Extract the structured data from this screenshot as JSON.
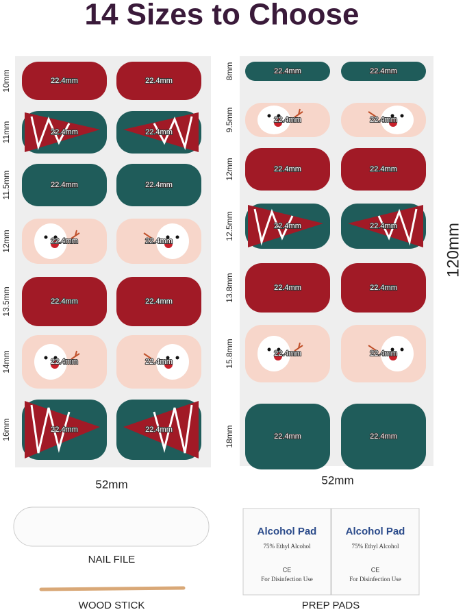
{
  "title": "14 Sizes to Choose",
  "left_sheet": {
    "rows": [
      {
        "size": "10mm",
        "nail_labels": [
          "22.4mm",
          "22.4mm"
        ]
      },
      {
        "size": "11mm",
        "nail_labels": [
          "22.4mm",
          "22.4mm"
        ]
      },
      {
        "size": "11.5mm",
        "nail_labels": [
          "22.4mm",
          "22.4mm"
        ]
      },
      {
        "size": "12mm",
        "nail_labels": [
          "22.4mm",
          "22.4mm"
        ]
      },
      {
        "size": "13.5mm",
        "nail_labels": [
          "22.4mm",
          "22.4mm"
        ]
      },
      {
        "size": "14mm",
        "nail_labels": [
          "22.4mm",
          "22.4mm"
        ]
      },
      {
        "size": "16mm",
        "nail_labels": [
          "22.4mm",
          "22.4mm"
        ]
      }
    ],
    "width_label": "52mm"
  },
  "right_sheet": {
    "rows": [
      {
        "size": "8mm",
        "nail_labels": [
          "22.4mm",
          "22.4mm"
        ]
      },
      {
        "size": "9.5mm",
        "nail_labels": [
          "22.4mm",
          "22.4mm"
        ]
      },
      {
        "size": "12mm",
        "nail_labels": [
          "22.4mm",
          "22.4mm"
        ]
      },
      {
        "size": "12.5mm",
        "nail_labels": [
          "22.4mm",
          "22.4mm"
        ]
      },
      {
        "size": "13.8mm",
        "nail_labels": [
          "22.4mm",
          "22.4mm"
        ]
      },
      {
        "size": "15.8mm",
        "nail_labels": [
          "22.4mm",
          "22.4mm"
        ]
      },
      {
        "size": "18mm",
        "nail_labels": [
          "22.4mm",
          "22.4mm"
        ]
      }
    ],
    "width_label": "52mm",
    "height_label": "120mm"
  },
  "accessories": {
    "nail_file": "NAIL FILE",
    "wood_stick": "WOOD STICK",
    "prep_pads": {
      "label": "PREP PADS",
      "pads": [
        {
          "name": "Alcohol Pad",
          "content": "75% Ethyl Alcohol",
          "mark": "CE",
          "use": "For Disinfection Use"
        },
        {
          "name": "Alcohol Pad",
          "content": "75% Ethyl Alcohol",
          "mark": "CE",
          "use": "For Disinfection Use"
        }
      ]
    }
  }
}
